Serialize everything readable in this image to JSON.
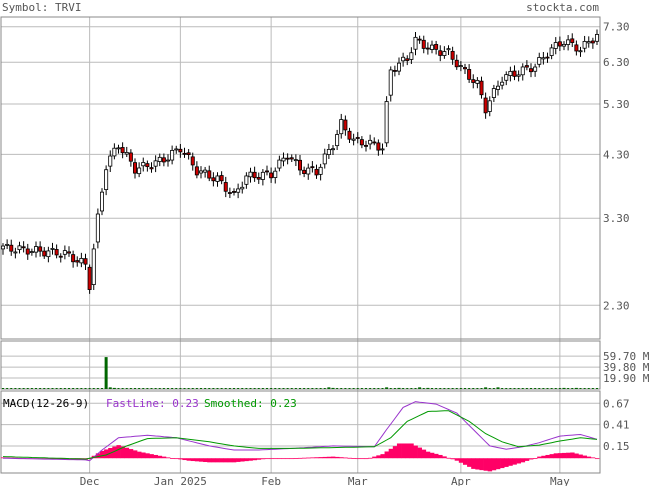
{
  "header": {
    "symbol_label": "Symbol: TRVI",
    "site_label": "stockta.com"
  },
  "chart_data": {
    "type": "candlestick",
    "symbol": "TRVI",
    "price_ticks": [
      "7.30",
      "6.30",
      "5.30",
      "4.30",
      "3.30",
      "2.30"
    ],
    "volume_ticks": [
      "59.70 M",
      "39.80 M",
      "19.90 M"
    ],
    "macd_ticks": [
      "0.67",
      "0.41",
      "0.15"
    ],
    "month_labels": [
      "Dec",
      "Jan 2025",
      "Feb",
      "Mar",
      "Apr",
      "May"
    ],
    "macd_legend": {
      "title": "MACD(12-26-9)",
      "fast_label": "FastLine: 0.23",
      "smoothed_label": "Smoothed: 0.23"
    },
    "colors": {
      "up": "#ffffff",
      "down": "#cc0000",
      "wick": "#000000",
      "volume": "#006600",
      "fast_line": "#9933cc",
      "smoothed_line": "#009900",
      "histogram": "#ff0066",
      "grid": "#bbbbbb"
    },
    "price_range": [
      2.0,
      7.6
    ],
    "volume_range": [
      0,
      80
    ],
    "macd_range": [
      -0.18,
      0.82
    ],
    "days": 145,
    "month_start_days": [
      21,
      43,
      65,
      86,
      111,
      135
    ],
    "anchors": [
      [
        0,
        2.92
      ],
      [
        15,
        2.85
      ],
      [
        20,
        2.72
      ],
      [
        21,
        2.5
      ],
      [
        25,
        4.1
      ],
      [
        28,
        4.48
      ],
      [
        32,
        4.05
      ],
      [
        36,
        4.12
      ],
      [
        40,
        4.25
      ],
      [
        43,
        4.42
      ],
      [
        47,
        4.02
      ],
      [
        52,
        3.88
      ],
      [
        56,
        3.62
      ],
      [
        59,
        3.92
      ],
      [
        65,
        3.96
      ],
      [
        69,
        4.3
      ],
      [
        72,
        4.05
      ],
      [
        76,
        4.0
      ],
      [
        80,
        4.48
      ],
      [
        82,
        4.88
      ],
      [
        85,
        4.55
      ],
      [
        90,
        4.48
      ],
      [
        92,
        4.42
      ],
      [
        94,
        6.1
      ],
      [
        98,
        6.4
      ],
      [
        100,
        6.9
      ],
      [
        104,
        6.65
      ],
      [
        108,
        6.55
      ],
      [
        111,
        6.15
      ],
      [
        115,
        5.75
      ],
      [
        117,
        5.2
      ],
      [
        121,
        5.9
      ],
      [
        125,
        6.05
      ],
      [
        129,
        6.2
      ],
      [
        133,
        6.65
      ],
      [
        136,
        6.88
      ],
      [
        140,
        6.65
      ],
      [
        144,
        7.05
      ]
    ],
    "volume_spikes": [
      [
        25,
        58
      ],
      [
        26,
        3
      ],
      [
        27,
        2
      ],
      [
        79,
        3
      ],
      [
        80,
        2
      ],
      [
        93,
        3
      ],
      [
        96,
        2
      ],
      [
        101,
        3
      ],
      [
        103,
        2
      ],
      [
        117,
        3
      ],
      [
        120,
        3
      ],
      [
        136,
        2
      ],
      [
        139,
        2
      ]
    ],
    "fast_line_points": [
      [
        0,
        0.0
      ],
      [
        20,
        -0.02
      ],
      [
        21,
        -0.03
      ],
      [
        24,
        0.1
      ],
      [
        28,
        0.25
      ],
      [
        35,
        0.28
      ],
      [
        42,
        0.25
      ],
      [
        50,
        0.15
      ],
      [
        56,
        0.1
      ],
      [
        62,
        0.1
      ],
      [
        70,
        0.12
      ],
      [
        80,
        0.15
      ],
      [
        90,
        0.14
      ],
      [
        93,
        0.35
      ],
      [
        97,
        0.62
      ],
      [
        100,
        0.69
      ],
      [
        105,
        0.66
      ],
      [
        110,
        0.55
      ],
      [
        115,
        0.3
      ],
      [
        118,
        0.15
      ],
      [
        122,
        0.11
      ],
      [
        126,
        0.14
      ],
      [
        130,
        0.19
      ],
      [
        135,
        0.27
      ],
      [
        140,
        0.29
      ],
      [
        144,
        0.23
      ]
    ],
    "smoothed_line_points": [
      [
        0,
        0.02
      ],
      [
        20,
        -0.01
      ],
      [
        25,
        0.04
      ],
      [
        30,
        0.15
      ],
      [
        35,
        0.24
      ],
      [
        42,
        0.25
      ],
      [
        50,
        0.2
      ],
      [
        56,
        0.15
      ],
      [
        62,
        0.12
      ],
      [
        70,
        0.12
      ],
      [
        80,
        0.13
      ],
      [
        90,
        0.14
      ],
      [
        94,
        0.25
      ],
      [
        98,
        0.45
      ],
      [
        103,
        0.57
      ],
      [
        108,
        0.58
      ],
      [
        113,
        0.45
      ],
      [
        117,
        0.3
      ],
      [
        121,
        0.2
      ],
      [
        125,
        0.14
      ],
      [
        130,
        0.16
      ],
      [
        135,
        0.21
      ],
      [
        140,
        0.25
      ],
      [
        144,
        0.23
      ]
    ],
    "histogram_points": [
      [
        0,
        0.01
      ],
      [
        20,
        -0.02
      ],
      [
        21,
        0.0
      ],
      [
        24,
        0.09
      ],
      [
        28,
        0.16
      ],
      [
        33,
        0.08
      ],
      [
        36,
        0.05
      ],
      [
        40,
        0.01
      ],
      [
        45,
        -0.03
      ],
      [
        50,
        -0.05
      ],
      [
        56,
        -0.05
      ],
      [
        60,
        -0.03
      ],
      [
        65,
        0.0
      ],
      [
        70,
        0.0
      ],
      [
        80,
        0.02
      ],
      [
        88,
        -0.01
      ],
      [
        92,
        0.05
      ],
      [
        96,
        0.18
      ],
      [
        99,
        0.18
      ],
      [
        103,
        0.08
      ],
      [
        106,
        0.04
      ],
      [
        110,
        -0.03
      ],
      [
        114,
        -0.13
      ],
      [
        118,
        -0.16
      ],
      [
        121,
        -0.12
      ],
      [
        126,
        -0.05
      ],
      [
        130,
        0.02
      ],
      [
        134,
        0.06
      ],
      [
        138,
        0.07
      ],
      [
        142,
        0.02
      ],
      [
        144,
        0.0
      ]
    ]
  }
}
